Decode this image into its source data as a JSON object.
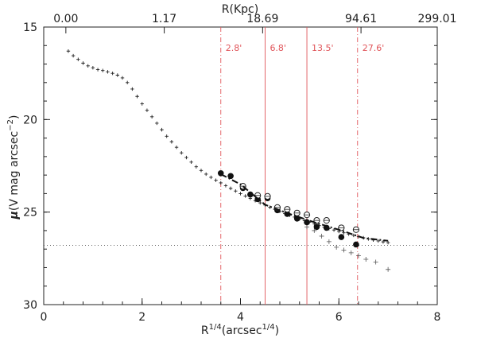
{
  "chart_data": {
    "type": "scatter",
    "xlabel_main": "R",
    "xlabel_sup1": "1/4",
    "xlabel_paren": "(arcsec",
    "xlabel_sup2": "1/4",
    "xlabel_close": ")",
    "ylabel_main": "(V mag arcsec",
    "ylabel_sup": "−2",
    "ylabel_close": ")",
    "ylabel_symbol": "μ",
    "xlim": [
      0,
      8
    ],
    "ylim": [
      30,
      15
    ],
    "x_ticks": [
      0,
      2,
      4,
      6,
      8
    ],
    "y_ticks": [
      15,
      20,
      25,
      30
    ],
    "top_axis": {
      "label": "R(Kpc)",
      "ticks": [
        {
          "x": 0.45,
          "label": "0.00"
        },
        {
          "x": 2.45,
          "label": "1.17"
        },
        {
          "x": 4.45,
          "label": "18.69"
        },
        {
          "x": 6.45,
          "label": "94.61"
        },
        {
          "x": 8.0,
          "label": "299.01"
        }
      ]
    },
    "vertical_markers": [
      {
        "x": 3.6,
        "label": "2.8'",
        "style": "dash-dot"
      },
      {
        "x": 4.5,
        "label": "6.8'",
        "style": "solid"
      },
      {
        "x": 5.35,
        "label": "13.5'",
        "style": "solid"
      },
      {
        "x": 6.38,
        "label": "27.6'",
        "style": "dash-dot"
      }
    ],
    "sky_level_y": 26.8,
    "series": [
      {
        "kind": "profile",
        "x": [
          0.5,
          0.6,
          0.7,
          0.8,
          0.9,
          1.0,
          1.1,
          1.2,
          1.3,
          1.4,
          1.5,
          1.6,
          1.7,
          1.8,
          1.9,
          2.0,
          2.1,
          2.2,
          2.3,
          2.4,
          2.5,
          2.6,
          2.7,
          2.8,
          2.9,
          3.0,
          3.1,
          3.2,
          3.3,
          3.4,
          3.5,
          3.6,
          3.7,
          3.8,
          3.9,
          4.0,
          4.1,
          4.2,
          4.3,
          4.4,
          4.5,
          4.6,
          4.7,
          4.8,
          4.9,
          5.0,
          5.1,
          5.2,
          5.3,
          5.4,
          5.5,
          5.6,
          5.7,
          5.8,
          5.9,
          6.0,
          6.1,
          6.2,
          6.3,
          6.4,
          6.5,
          6.6,
          6.7,
          6.8,
          6.9,
          7.0
        ],
        "y": [
          16.3,
          16.55,
          16.75,
          16.95,
          17.1,
          17.2,
          17.3,
          17.35,
          17.42,
          17.5,
          17.6,
          17.75,
          18.0,
          18.35,
          18.75,
          19.15,
          19.5,
          19.85,
          20.2,
          20.55,
          20.9,
          21.2,
          21.5,
          21.8,
          22.05,
          22.3,
          22.55,
          22.75,
          22.95,
          23.12,
          23.28,
          23.42,
          23.57,
          23.72,
          23.86,
          24.0,
          24.13,
          24.26,
          24.38,
          24.5,
          24.62,
          24.74,
          24.85,
          24.96,
          25.07,
          25.17,
          25.27,
          25.37,
          25.46,
          25.55,
          25.64,
          25.73,
          25.81,
          25.89,
          25.97,
          26.05,
          26.12,
          26.19,
          26.26,
          26.33,
          26.39,
          26.45,
          26.51,
          26.56,
          26.61,
          26.65
        ]
      },
      {
        "kind": "raw-points",
        "x": [
          5.35,
          5.5,
          5.65,
          5.8,
          5.95,
          6.1,
          6.25,
          6.4,
          6.55,
          6.75,
          7.0
        ],
        "y": [
          25.8,
          26.0,
          26.3,
          26.6,
          26.9,
          27.05,
          27.2,
          27.35,
          27.55,
          27.7,
          28.1
        ]
      },
      {
        "kind": "filled-circles",
        "x": [
          3.6,
          3.8,
          4.05,
          4.2,
          4.35,
          4.55,
          4.75,
          4.95,
          5.15,
          5.35,
          5.55,
          5.75,
          6.05,
          6.35
        ],
        "y": [
          22.9,
          23.05,
          23.7,
          24.05,
          24.3,
          24.25,
          24.9,
          25.1,
          25.35,
          25.55,
          25.8,
          25.85,
          26.35,
          26.75
        ]
      },
      {
        "kind": "open-circles",
        "x": [
          4.05,
          4.35,
          4.55,
          4.75,
          4.95,
          5.15,
          5.35,
          5.55,
          5.75,
          6.05,
          6.35
        ],
        "y": [
          23.6,
          24.1,
          24.15,
          24.75,
          24.85,
          25.05,
          25.15,
          25.45,
          25.45,
          25.85,
          25.95
        ]
      }
    ],
    "fit_line": {
      "x": [
        3.6,
        4.0,
        4.5,
        5.0,
        5.5,
        6.0,
        6.5,
        7.0
      ],
      "y": [
        22.95,
        23.5,
        24.6,
        25.1,
        25.55,
        25.95,
        26.4,
        26.55
      ]
    }
  }
}
